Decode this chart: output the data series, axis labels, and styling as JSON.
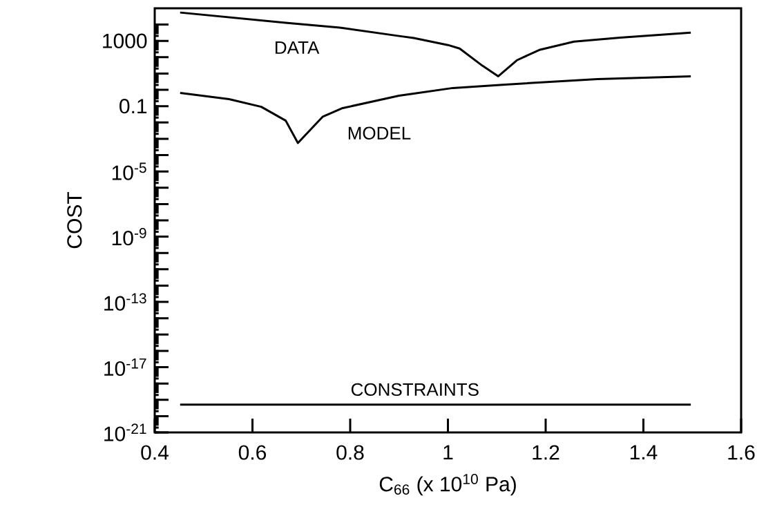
{
  "chart_data": {
    "type": "line",
    "xlabel": "C$_{66}$ (x 10$^{10}$ Pa)",
    "ylabel": "COST",
    "log": "y",
    "marker": "none",
    "line_style": "solid",
    "grid": false,
    "legend": false,
    "xlim": [
      0.4,
      1.6
    ],
    "xticks": [
      0.4,
      0.6,
      0.8,
      1,
      1.2,
      1.4,
      1.6
    ],
    "ylim": [
      1e-21,
      100000
    ],
    "yticks": [
      {
        "value": 1e-21,
        "label": "10$^{-21}$"
      },
      {
        "value": 1e-20,
        "label": null
      },
      {
        "value": 1e-19,
        "label": null
      },
      {
        "value": 1e-18,
        "label": null
      },
      {
        "value": 1e-17,
        "label": "10$^{-17}$"
      },
      {
        "value": 1e-16,
        "label": null
      },
      {
        "value": 1e-15,
        "label": null
      },
      {
        "value": 1e-14,
        "label": null
      },
      {
        "value": 1e-13,
        "label": "10$^{-13}$"
      },
      {
        "value": 1e-12,
        "label": null
      },
      {
        "value": 1e-11,
        "label": null
      },
      {
        "value": 1e-10,
        "label": null
      },
      {
        "value": 1e-09,
        "label": "10$^{-9}$"
      },
      {
        "value": 1e-08,
        "label": null
      },
      {
        "value": 1e-07,
        "label": null
      },
      {
        "value": 1e-06,
        "label": null
      },
      {
        "value": 1e-05,
        "label": "10$^{-5}$"
      },
      {
        "value": 0.0001,
        "label": null
      },
      {
        "value": 0.001,
        "label": null
      },
      {
        "value": 0.01,
        "label": null
      },
      0.1,
      {
        "value": 1,
        "label": null
      },
      {
        "value": 10,
        "label": null
      },
      {
        "value": 100,
        "label": null
      },
      1000,
      {
        "value": 10000,
        "label": null
      }
    ],
    "series": [
      {
        "name": "DATA",
        "color": "#000000",
        "x": [
          0.452,
          0.668,
          0.779,
          0.9,
          0.93,
          1.0,
          1.024,
          1.07,
          1.103,
          1.141,
          1.187,
          1.258,
          1.352,
          1.497
        ],
        "values": [
          55000,
          13000,
          6500,
          2000,
          1500,
          560,
          340,
          31,
          6.8,
          65,
          280,
          910,
          1600,
          3200
        ]
      },
      {
        "name": "MODEL",
        "color": "#000000",
        "x": [
          0.452,
          0.552,
          0.618,
          0.668,
          0.693,
          0.744,
          0.783,
          0.9,
          0.93,
          1.01,
          1.117,
          1.306,
          1.497
        ],
        "values": [
          0.65,
          0.27,
          0.091,
          0.013,
          0.00055,
          0.023,
          0.074,
          0.44,
          0.59,
          1.3,
          2.1,
          4.6,
          6.8
        ]
      },
      {
        "name": "CONSTRAINTS",
        "color": "#000000",
        "x": [
          0.452,
          1.497
        ],
        "values": [
          5e-20,
          5e-20
        ]
      }
    ]
  }
}
